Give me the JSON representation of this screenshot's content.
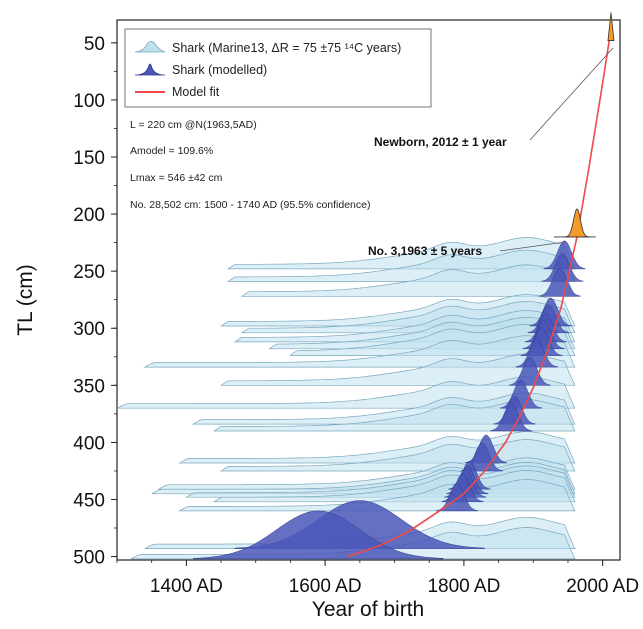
{
  "chart_data": {
    "type": "area",
    "title": "",
    "xlabel": "Year of birth",
    "ylabel": "TL (cm)",
    "xlim": [
      1300,
      2025
    ],
    "ylim": [
      30,
      503
    ],
    "y_inverted": true,
    "x_ticks": [
      {
        "value": 1400,
        "label": "1400 AD"
      },
      {
        "value": 1600,
        "label": "1600 AD"
      },
      {
        "value": 1800,
        "label": "1800 AD"
      },
      {
        "value": 2000,
        "label": "2000 AD"
      }
    ],
    "y_ticks": [
      50,
      100,
      150,
      200,
      250,
      300,
      350,
      400,
      450,
      500
    ],
    "legend": {
      "placement": "top-left",
      "entries": [
        {
          "label": "Shark (Marine13, ΔR = 75 ±75 ¹⁴C years)",
          "color": "#bfe0ee",
          "kind": "calibrated-density"
        },
        {
          "label": "Shark (modelled)",
          "color": "#4a57b8",
          "kind": "modelled-density"
        },
        {
          "label": "Model fit",
          "color": "#f04848",
          "kind": "line"
        }
      ]
    },
    "info_lines": [
      "L = 220 cm @N(1963,5AD)",
      "Amodel = 109.6%",
      "Lmax = 546 ±42 cm",
      "No. 28,502 cm: 1500 - 1740 AD (95.5% confidence)"
    ],
    "annotations": [
      {
        "text": "Newborn, 2012 ± 1 year",
        "x": 2012,
        "y": 38
      },
      {
        "text": "No. 3,1963 ± 5 years",
        "x": 1963,
        "y": 220
      }
    ],
    "model_fit": {
      "x": [
        1632,
        1680,
        1720,
        1760,
        1800,
        1830,
        1860,
        1880,
        1900,
        1920,
        1940,
        1963,
        1980,
        2000,
        2012
      ],
      "y": [
        500,
        490,
        478,
        462,
        445,
        425,
        400,
        378,
        352,
        320,
        282,
        220,
        160,
        85,
        38
      ]
    },
    "sharks": [
      {
        "length": 248,
        "cal": [
          1460,
          1960
        ],
        "modelled_mode": 1945
      },
      {
        "length": 259,
        "cal": [
          1460,
          1960
        ],
        "modelled_mode": 1942
      },
      {
        "length": 272,
        "cal": [
          1480,
          1960
        ],
        "modelled_mode": 1938
      },
      {
        "length": 298,
        "cal": [
          1450,
          1960
        ],
        "modelled_mode": 1925
      },
      {
        "length": 304,
        "cal": [
          1480,
          1960
        ],
        "modelled_mode": 1922
      },
      {
        "length": 312,
        "cal": [
          1470,
          1960
        ],
        "modelled_mode": 1918
      },
      {
        "length": 318,
        "cal": [
          1520,
          1960
        ],
        "modelled_mode": 1915
      },
      {
        "length": 324,
        "cal": [
          1550,
          1960
        ],
        "modelled_mode": 1912
      },
      {
        "length": 334,
        "cal": [
          1340,
          1960
        ],
        "modelled_mode": 1905
      },
      {
        "length": 350,
        "cal": [
          1450,
          1960
        ],
        "modelled_mode": 1895
      },
      {
        "length": 370,
        "cal": [
          1300,
          1960
        ],
        "modelled_mode": 1882
      },
      {
        "length": 384,
        "cal": [
          1410,
          1960
        ],
        "modelled_mode": 1873
      },
      {
        "length": 390,
        "cal": [
          1440,
          1960
        ],
        "modelled_mode": 1868
      },
      {
        "length": 418,
        "cal": [
          1390,
          1960
        ],
        "modelled_mode": 1832
      },
      {
        "length": 425,
        "cal": [
          1450,
          1960
        ],
        "modelled_mode": 1826
      },
      {
        "length": 441,
        "cal": [
          1360,
          1960
        ],
        "modelled_mode": 1808
      },
      {
        "length": 445,
        "cal": [
          1350,
          1960
        ],
        "modelled_mode": 1805
      },
      {
        "length": 448,
        "cal": [
          1400,
          1960
        ],
        "modelled_mode": 1802
      },
      {
        "length": 452,
        "cal": [
          1440,
          1960
        ],
        "modelled_mode": 1798
      },
      {
        "length": 460,
        "cal": [
          1390,
          1960
        ],
        "modelled_mode": 1790
      },
      {
        "length": 493,
        "cal": [
          1340,
          1960
        ],
        "modelled_mode": 1650
      },
      {
        "length": 502,
        "cal": [
          1320,
          1960
        ],
        "modelled_mode": 1590
      }
    ]
  }
}
